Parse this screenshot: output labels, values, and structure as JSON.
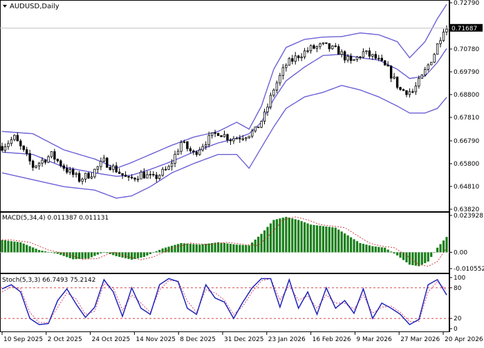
{
  "window": {
    "symbol_title": "AUDUSD,Daily",
    "price_badge": "0.71687"
  },
  "colors": {
    "background": "#ffffff",
    "frame": "#000000",
    "price_line": "#c0c0c0",
    "bollinger": "#6a60d6",
    "candle": "#000000",
    "macd_hist": "#1a7f1a",
    "macd_signal": "#cc2a2a",
    "stoch_main": "#1e22b8",
    "stoch_signal": "#d0306a",
    "stoch_levels": "#cc2a2a"
  },
  "chart_data": [
    {
      "type": "candlestick",
      "title": "AUDUSD,Daily",
      "indicator": "Bollinger Bands",
      "y_ticks": [
        "0.72790",
        "0.71687",
        "0.70780",
        "0.69790",
        "0.68800",
        "0.67810",
        "0.66790",
        "0.65800",
        "0.64810",
        "0.63820"
      ],
      "ylim": [
        0.6382,
        0.7279
      ],
      "last_price": 0.71687,
      "close_path": [
        [
          0,
          0.6655
        ],
        [
          4,
          0.6692
        ],
        [
          10,
          0.6568
        ],
        [
          16,
          0.6618
        ],
        [
          21,
          0.6552
        ],
        [
          25,
          0.6512
        ],
        [
          29,
          0.6538
        ],
        [
          33,
          0.659
        ],
        [
          37,
          0.6553
        ],
        [
          41,
          0.6508
        ],
        [
          45,
          0.6536
        ],
        [
          49,
          0.6515
        ],
        [
          54,
          0.656
        ],
        [
          58,
          0.6672
        ],
        [
          62,
          0.6622
        ],
        [
          66,
          0.6678
        ],
        [
          70,
          0.6718
        ],
        [
          74,
          0.6688
        ],
        [
          78,
          0.67
        ],
        [
          82,
          0.6722
        ],
        [
          85,
          0.679
        ],
        [
          88,
          0.6905
        ],
        [
          92,
          0.701
        ],
        [
          96,
          0.705
        ],
        [
          100,
          0.708
        ],
        [
          104,
          0.7092
        ],
        [
          109,
          0.7068
        ],
        [
          113,
          0.7018
        ],
        [
          117,
          0.7062
        ],
        [
          121,
          0.7038
        ],
        [
          125,
          0.6988
        ],
        [
          129,
          0.69
        ],
        [
          133,
          0.6892
        ],
        [
          136,
          0.6955
        ],
        [
          140,
          0.706
        ],
        [
          143,
          0.7168
        ]
      ],
      "bands": {
        "upper": [
          [
            0,
            0.672
          ],
          [
            10,
            0.671
          ],
          [
            20,
            0.664
          ],
          [
            30,
            0.66
          ],
          [
            37,
            0.656
          ],
          [
            42,
            0.6585
          ],
          [
            48,
            0.662
          ],
          [
            55,
            0.666
          ],
          [
            62,
            0.6695
          ],
          [
            70,
            0.672
          ],
          [
            76,
            0.676
          ],
          [
            80,
            0.673
          ],
          [
            84,
            0.683
          ],
          [
            88,
            0.699
          ],
          [
            92,
            0.7085
          ],
          [
            98,
            0.712
          ],
          [
            104,
            0.713
          ],
          [
            110,
            0.7132
          ],
          [
            116,
            0.7148
          ],
          [
            122,
            0.714
          ],
          [
            128,
            0.711
          ],
          [
            132,
            0.704
          ],
          [
            137,
            0.711
          ],
          [
            141,
            0.721
          ],
          [
            144,
            0.7272
          ]
        ],
        "middle": [
          [
            0,
            0.663
          ],
          [
            10,
            0.662
          ],
          [
            20,
            0.6565
          ],
          [
            30,
            0.654
          ],
          [
            37,
            0.6525
          ],
          [
            42,
            0.653
          ],
          [
            48,
            0.6555
          ],
          [
            55,
            0.659
          ],
          [
            62,
            0.663
          ],
          [
            70,
            0.667
          ],
          [
            76,
            0.669
          ],
          [
            80,
            0.671
          ],
          [
            84,
            0.676
          ],
          [
            88,
            0.686
          ],
          [
            92,
            0.694
          ],
          [
            98,
            0.7
          ],
          [
            104,
            0.705
          ],
          [
            110,
            0.7055
          ],
          [
            116,
            0.704
          ],
          [
            122,
            0.703
          ],
          [
            128,
            0.699
          ],
          [
            132,
            0.695
          ],
          [
            137,
            0.696
          ],
          [
            141,
            0.702
          ],
          [
            144,
            0.708
          ]
        ],
        "lower": [
          [
            0,
            0.654
          ],
          [
            10,
            0.651
          ],
          [
            20,
            0.648
          ],
          [
            30,
            0.6465
          ],
          [
            37,
            0.643
          ],
          [
            42,
            0.644
          ],
          [
            48,
            0.648
          ],
          [
            55,
            0.654
          ],
          [
            62,
            0.658
          ],
          [
            70,
            0.662
          ],
          [
            76,
            0.662
          ],
          [
            80,
            0.656
          ],
          [
            84,
            0.665
          ],
          [
            88,
            0.674
          ],
          [
            92,
            0.682
          ],
          [
            98,
            0.687
          ],
          [
            104,
            0.689
          ],
          [
            110,
            0.692
          ],
          [
            116,
            0.69
          ],
          [
            122,
            0.687
          ],
          [
            128,
            0.683
          ],
          [
            132,
            0.68
          ],
          [
            137,
            0.68
          ],
          [
            141,
            0.682
          ],
          [
            144,
            0.6868
          ]
        ]
      }
    },
    {
      "type": "histogram",
      "title": "MACD(5,34,4) 0.011387 0.011131",
      "y_ticks": [
        "0.023928",
        "0.00",
        "-0.010552"
      ],
      "ylim": [
        -0.010552,
        0.023928
      ],
      "histogram_path": [
        [
          0,
          0.008
        ],
        [
          6,
          0.0065
        ],
        [
          12,
          0.0015
        ],
        [
          18,
          -0.001
        ],
        [
          23,
          -0.0045
        ],
        [
          28,
          -0.004
        ],
        [
          33,
          0.0002
        ],
        [
          37,
          -0.0025
        ],
        [
          42,
          -0.0048
        ],
        [
          46,
          -0.003
        ],
        [
          52,
          0.0025
        ],
        [
          58,
          0.006
        ],
        [
          64,
          0.005
        ],
        [
          70,
          0.0065
        ],
        [
          76,
          0.005
        ],
        [
          80,
          0.0045
        ],
        [
          84,
          0.012
        ],
        [
          88,
          0.021
        ],
        [
          92,
          0.023
        ],
        [
          96,
          0.021
        ],
        [
          100,
          0.018
        ],
        [
          104,
          0.017
        ],
        [
          108,
          0.016
        ],
        [
          112,
          0.011
        ],
        [
          116,
          0.006
        ],
        [
          120,
          0.004
        ],
        [
          124,
          0.003
        ],
        [
          128,
          -0.002
        ],
        [
          132,
          -0.008
        ],
        [
          135,
          -0.009
        ],
        [
          138,
          -0.006
        ],
        [
          141,
          0.003
        ],
        [
          144,
          0.01
        ]
      ]
    },
    {
      "type": "line",
      "title": "Stoch(5,3,3) 66.7493 75.2142",
      "y_ticks": [
        "100",
        "80",
        "20",
        "0"
      ],
      "ylim": [
        0,
        100
      ],
      "levels": [
        80,
        20
      ],
      "main_path": [
        [
          0,
          78
        ],
        [
          3,
          86
        ],
        [
          6,
          72
        ],
        [
          9,
          20
        ],
        [
          12,
          8
        ],
        [
          15,
          10
        ],
        [
          18,
          55
        ],
        [
          21,
          78
        ],
        [
          24,
          48
        ],
        [
          27,
          22
        ],
        [
          30,
          42
        ],
        [
          33,
          96
        ],
        [
          36,
          72
        ],
        [
          39,
          24
        ],
        [
          42,
          80
        ],
        [
          45,
          40
        ],
        [
          48,
          28
        ],
        [
          51,
          86
        ],
        [
          54,
          98
        ],
        [
          57,
          92
        ],
        [
          60,
          40
        ],
        [
          63,
          28
        ],
        [
          66,
          86
        ],
        [
          69,
          60
        ],
        [
          72,
          52
        ],
        [
          75,
          20
        ],
        [
          78,
          52
        ],
        [
          81,
          80
        ],
        [
          84,
          98
        ],
        [
          87,
          98
        ],
        [
          90,
          42
        ],
        [
          93,
          96
        ],
        [
          96,
          40
        ],
        [
          99,
          72
        ],
        [
          102,
          28
        ],
        [
          105,
          80
        ],
        [
          108,
          40
        ],
        [
          111,
          55
        ],
        [
          114,
          30
        ],
        [
          117,
          78
        ],
        [
          120,
          20
        ],
        [
          123,
          50
        ],
        [
          126,
          40
        ],
        [
          129,
          28
        ],
        [
          132,
          8
        ],
        [
          135,
          18
        ],
        [
          138,
          86
        ],
        [
          141,
          96
        ],
        [
          144,
          66
        ]
      ],
      "signal_path": [
        [
          0,
          72
        ],
        [
          3,
          82
        ],
        [
          6,
          78
        ],
        [
          9,
          32
        ],
        [
          12,
          12
        ],
        [
          15,
          12
        ],
        [
          18,
          42
        ],
        [
          21,
          70
        ],
        [
          24,
          58
        ],
        [
          27,
          28
        ],
        [
          30,
          34
        ],
        [
          33,
          88
        ],
        [
          36,
          80
        ],
        [
          39,
          36
        ],
        [
          42,
          66
        ],
        [
          45,
          50
        ],
        [
          48,
          32
        ],
        [
          51,
          76
        ],
        [
          54,
          94
        ],
        [
          57,
          94
        ],
        [
          60,
          54
        ],
        [
          63,
          32
        ],
        [
          66,
          76
        ],
        [
          69,
          70
        ],
        [
          72,
          56
        ],
        [
          75,
          28
        ],
        [
          78,
          44
        ],
        [
          81,
          72
        ],
        [
          84,
          94
        ],
        [
          87,
          98
        ],
        [
          90,
          56
        ],
        [
          93,
          84
        ],
        [
          96,
          56
        ],
        [
          99,
          64
        ],
        [
          102,
          40
        ],
        [
          105,
          66
        ],
        [
          108,
          50
        ],
        [
          111,
          50
        ],
        [
          114,
          38
        ],
        [
          117,
          66
        ],
        [
          120,
          30
        ],
        [
          123,
          42
        ],
        [
          126,
          44
        ],
        [
          129,
          32
        ],
        [
          132,
          14
        ],
        [
          135,
          14
        ],
        [
          138,
          72
        ],
        [
          141,
          92
        ],
        [
          144,
          75
        ]
      ]
    }
  ],
  "x_axis": {
    "labels": [
      "10 Sep 2025",
      "2 Oct 2025",
      "24 Oct 2025",
      "14 Nov 2025",
      "8 Dec 2025",
      "31 Dec 2025",
      "23 Jan 2026",
      "16 Feb 2026",
      "9 Mar 2026",
      "27 Mar 2026",
      "20 Apr 2026"
    ]
  }
}
